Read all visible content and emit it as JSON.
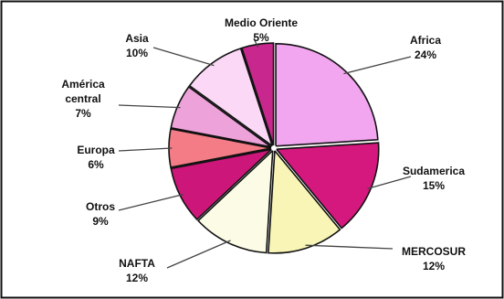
{
  "chart_data": {
    "type": "pie",
    "title": "",
    "categories": [
      "Africa",
      "Sudamerica",
      "MERCOSUR",
      "NAFTA",
      "Otros",
      "Europa",
      "América central",
      "Asia",
      "Medio Oriente"
    ],
    "values": [
      24,
      15,
      12,
      12,
      9,
      6,
      7,
      10,
      5
    ],
    "value_labels": [
      "24%",
      "15%",
      "12%",
      "12%",
      "9%",
      "6%",
      "7%",
      "10%",
      "5%"
    ],
    "colors": [
      "#F2A6F0",
      "#D4187E",
      "#F8F5B6",
      "#FCFCE6",
      "#CC1679",
      "#F47C86",
      "#EEA2DA",
      "#FAD8F6",
      "#C8288E"
    ],
    "start_angle_deg": 0,
    "direction": "clockwise",
    "legend": "none",
    "labels": "outside-with-leader-lines"
  }
}
